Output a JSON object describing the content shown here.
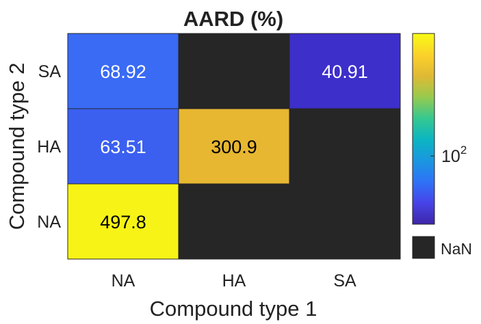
{
  "chart_data": {
    "type": "heatmap",
    "title": "AARD (%)",
    "xlabel": "Compound type 1",
    "ylabel": "Compound type 2",
    "x_categories": [
      "NA",
      "HA",
      "SA"
    ],
    "y_categories": [
      "SA",
      "HA",
      "NA"
    ],
    "cells": [
      {
        "x": "NA",
        "y": "SA",
        "value": 68.92,
        "label": "68.92",
        "color": "#3a6bf5",
        "text_color": "#ffffff"
      },
      {
        "x": "HA",
        "y": "SA",
        "value": null,
        "label": "",
        "color": "#262626",
        "text_color": "#ffffff"
      },
      {
        "x": "SA",
        "y": "SA",
        "value": 40.91,
        "label": "40.91",
        "color": "#3d2fca",
        "text_color": "#ffffff"
      },
      {
        "x": "NA",
        "y": "HA",
        "value": 63.51,
        "label": "63.51",
        "color": "#3b60f0",
        "text_color": "#ffffff"
      },
      {
        "x": "HA",
        "y": "HA",
        "value": 300.9,
        "label": "300.9",
        "color": "#e7b731",
        "text_color": "#000000"
      },
      {
        "x": "SA",
        "y": "HA",
        "value": null,
        "label": "",
        "color": "#262626",
        "text_color": "#ffffff"
      },
      {
        "x": "NA",
        "y": "NA",
        "value": 497.8,
        "label": "497.8",
        "color": "#f7f316",
        "text_color": "#000000"
      },
      {
        "x": "HA",
        "y": "NA",
        "value": null,
        "label": "",
        "color": "#262626",
        "text_color": "#ffffff"
      },
      {
        "x": "SA",
        "y": "NA",
        "value": null,
        "label": "",
        "color": "#262626",
        "text_color": "#ffffff"
      }
    ],
    "colorbar": {
      "scale": "log",
      "colormap": "parula",
      "range": [
        40.91,
        497.8
      ],
      "ticks": [
        {
          "value": 100,
          "base": "10",
          "exponent": "2"
        }
      ],
      "stops": [
        "#3e26a8",
        "#4743e8",
        "#2f72f7",
        "#1a97e0",
        "#0bb6c2",
        "#36c890",
        "#97ca4e",
        "#e0b934",
        "#fbd22a",
        "#f9fb15"
      ],
      "nan_label": "NaN",
      "nan_color": "#262626"
    }
  }
}
